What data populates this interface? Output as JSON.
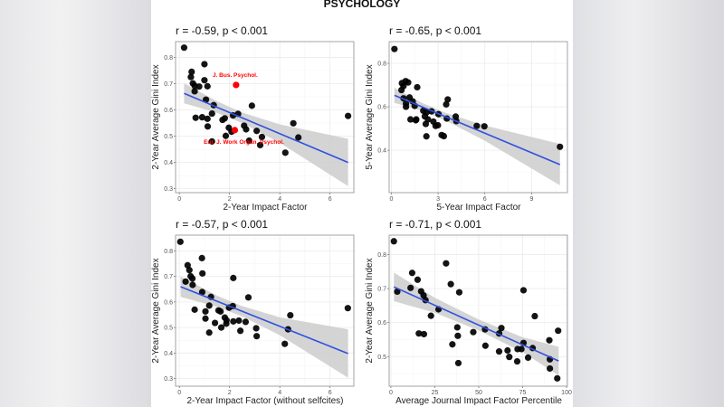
{
  "title": "PSYCHOLOGY",
  "colors": {
    "points": "#000000",
    "highlight": "#ff0000",
    "fit_line": "#3050e0",
    "ci_band": "#cccccc",
    "panel_border": "#9a9a9a",
    "grid": "#ebebeb"
  },
  "chart_data": [
    {
      "type": "scatter",
      "title": "r = -0.59, p < 0.001",
      "xlabel": "2-Year Impact Factor",
      "ylabel": "2-Year Average Gini Index",
      "xlim": [
        -0.15,
        6.95
      ],
      "ylim": [
        0.285,
        0.86
      ],
      "xticks": [
        0,
        2,
        4,
        6
      ],
      "yticks": [
        0.3,
        0.4,
        0.5,
        0.6,
        0.7,
        0.8
      ],
      "grid": true,
      "points": [
        [
          0.19,
          0.837
        ],
        [
          1.0,
          0.774
        ],
        [
          0.49,
          0.745
        ],
        [
          0.46,
          0.725
        ],
        [
          0.54,
          0.701
        ],
        [
          1.0,
          0.713
        ],
        [
          0.61,
          0.692
        ],
        [
          0.79,
          0.689
        ],
        [
          1.12,
          0.69
        ],
        [
          0.61,
          0.671
        ],
        [
          1.06,
          0.639
        ],
        [
          1.37,
          0.618
        ],
        [
          2.89,
          0.616
        ],
        [
          0.65,
          0.57
        ],
        [
          0.91,
          0.572
        ],
        [
          1.3,
          0.586
        ],
        [
          1.12,
          0.566
        ],
        [
          1.13,
          0.537
        ],
        [
          1.72,
          0.562
        ],
        [
          1.81,
          0.568
        ],
        [
          2.14,
          0.579
        ],
        [
          2.34,
          0.585
        ],
        [
          6.72,
          0.577
        ],
        [
          4.54,
          0.549
        ],
        [
          2.58,
          0.54
        ],
        [
          2.66,
          0.526
        ],
        [
          1.97,
          0.532
        ],
        [
          2.08,
          0.517
        ],
        [
          1.85,
          0.501
        ],
        [
          3.08,
          0.52
        ],
        [
          2.78,
          0.483
        ],
        [
          3.29,
          0.497
        ],
        [
          3.22,
          0.466
        ],
        [
          1.3,
          0.48
        ],
        [
          4.22,
          0.437
        ],
        [
          4.74,
          0.495
        ]
      ],
      "highlighted": [
        {
          "x": 2.26,
          "y": 0.695,
          "label": "J. Bus. Psychol."
        },
        {
          "x": 2.21,
          "y": 0.523,
          "label": "Eur. J. Work Organ. Psychol."
        }
      ],
      "fit": {
        "x": [
          0.19,
          6.72
        ],
        "y": [
          0.663,
          0.4
        ]
      },
      "ci_band": {
        "x": [
          0.19,
          1.5,
          2.5,
          4,
          6.72
        ],
        "lower": [
          0.625,
          0.589,
          0.55,
          0.475,
          0.31
        ],
        "upper": [
          0.701,
          0.633,
          0.59,
          0.545,
          0.49
        ]
      }
    },
    {
      "type": "scatter",
      "title": "r = -0.65, p < 0.001",
      "xlabel": "5-Year Impact Factor",
      "ylabel": "5-Year Average Gini Index",
      "xlim": [
        -0.14,
        11.3
      ],
      "ylim": [
        0.205,
        0.9
      ],
      "xticks": [
        0,
        3,
        6,
        9
      ],
      "yticks": [
        0.4,
        0.6,
        0.8
      ],
      "grid": true,
      "points": [
        [
          0.2,
          0.866
        ],
        [
          0.68,
          0.709
        ],
        [
          0.92,
          0.718
        ],
        [
          1.08,
          0.712
        ],
        [
          0.78,
          0.695
        ],
        [
          0.65,
          0.677
        ],
        [
          1.66,
          0.69
        ],
        [
          0.78,
          0.639
        ],
        [
          0.94,
          0.615
        ],
        [
          0.94,
          0.6
        ],
        [
          1.17,
          0.643
        ],
        [
          1.37,
          0.625
        ],
        [
          1.5,
          0.604
        ],
        [
          1.23,
          0.542
        ],
        [
          1.57,
          0.538
        ],
        [
          1.6,
          0.542
        ],
        [
          2.05,
          0.582
        ],
        [
          2.25,
          0.574
        ],
        [
          2.58,
          0.579
        ],
        [
          2.15,
          0.556
        ],
        [
          2.35,
          0.542
        ],
        [
          2.21,
          0.521
        ],
        [
          2.25,
          0.464
        ],
        [
          2.7,
          0.532
        ],
        [
          2.84,
          0.512
        ],
        [
          2.99,
          0.515
        ],
        [
          3.03,
          0.566
        ],
        [
          3.23,
          0.47
        ],
        [
          3.37,
          0.465
        ],
        [
          3.56,
          0.546
        ],
        [
          3.52,
          0.611
        ],
        [
          3.62,
          0.634
        ],
        [
          4.13,
          0.555
        ],
        [
          4.17,
          0.534
        ],
        [
          5.48,
          0.512
        ],
        [
          5.97,
          0.51
        ],
        [
          10.82,
          0.416
        ]
      ],
      "highlighted": [],
      "fit": {
        "x": [
          0.2,
          10.82
        ],
        "y": [
          0.653,
          0.334
        ]
      },
      "ci_band": {
        "x": [
          0.2,
          2,
          3.5,
          6,
          10.82
        ],
        "lower": [
          0.618,
          0.581,
          0.536,
          0.444,
          0.239
        ],
        "upper": [
          0.688,
          0.617,
          0.572,
          0.514,
          0.429
        ]
      }
    },
    {
      "type": "scatter",
      "title": "r = -0.57, p < 0.001",
      "xlabel": "2-Year Impact Factor (without selfcites)",
      "ylabel": "2-Year Average Gini Index",
      "xlim": [
        -0.15,
        6.95
      ],
      "ylim": [
        0.27,
        0.862
      ],
      "xticks": [
        0,
        2,
        4,
        6
      ],
      "yticks": [
        0.3,
        0.4,
        0.5,
        0.6,
        0.7,
        0.8
      ],
      "grid": true,
      "points": [
        [
          0.04,
          0.836
        ],
        [
          0.9,
          0.772
        ],
        [
          0.92,
          0.712
        ],
        [
          0.33,
          0.744
        ],
        [
          0.4,
          0.725
        ],
        [
          0.45,
          0.701
        ],
        [
          0.52,
          0.692
        ],
        [
          0.25,
          0.68
        ],
        [
          0.53,
          0.667
        ],
        [
          0.91,
          0.639
        ],
        [
          1.26,
          0.62
        ],
        [
          2.15,
          0.694
        ],
        [
          2.75,
          0.618
        ],
        [
          0.61,
          0.57
        ],
        [
          1.04,
          0.563
        ],
        [
          1.19,
          0.586
        ],
        [
          1.04,
          0.535
        ],
        [
          1.56,
          0.567
        ],
        [
          1.64,
          0.563
        ],
        [
          1.98,
          0.578
        ],
        [
          2.13,
          0.584
        ],
        [
          6.71,
          0.576
        ],
        [
          4.42,
          0.548
        ],
        [
          1.81,
          0.539
        ],
        [
          1.88,
          0.528
        ],
        [
          1.42,
          0.518
        ],
        [
          1.87,
          0.515
        ],
        [
          1.67,
          0.5
        ],
        [
          1.19,
          0.48
        ],
        [
          2.15,
          0.524
        ],
        [
          2.37,
          0.527
        ],
        [
          2.64,
          0.522
        ],
        [
          2.43,
          0.487
        ],
        [
          3.06,
          0.497
        ],
        [
          3.08,
          0.466
        ],
        [
          4.33,
          0.493
        ],
        [
          4.2,
          0.436
        ]
      ],
      "highlighted": [],
      "fit": {
        "x": [
          0.05,
          6.72
        ],
        "y": [
          0.66,
          0.398
        ]
      },
      "ci_band": {
        "x": [
          0.05,
          1.5,
          2.5,
          4,
          6.72
        ],
        "lower": [
          0.62,
          0.581,
          0.544,
          0.47,
          0.303
        ],
        "upper": [
          0.7,
          0.625,
          0.584,
          0.54,
          0.493
        ]
      }
    },
    {
      "type": "scatter",
      "title": "r = -0.71, p < 0.001",
      "xlabel": "Average Journal Impact Factor Percentile",
      "ylabel": "2-Year Average Gini Index",
      "xlim": [
        -1,
        100.5
      ],
      "ylim": [
        0.413,
        0.857
      ],
      "xticks": [
        0,
        25,
        50,
        75,
        100
      ],
      "yticks": [
        0.5,
        0.6,
        0.7,
        0.8
      ],
      "grid": true,
      "points": [
        [
          1.7,
          0.839
        ],
        [
          3.6,
          0.691
        ],
        [
          11.2,
          0.702
        ],
        [
          12.1,
          0.746
        ],
        [
          15.2,
          0.726
        ],
        [
          17.2,
          0.692
        ],
        [
          18.6,
          0.68
        ],
        [
          19.7,
          0.666
        ],
        [
          22.8,
          0.62
        ],
        [
          27.1,
          0.639
        ],
        [
          15.9,
          0.568
        ],
        [
          18.8,
          0.566
        ],
        [
          31.4,
          0.774
        ],
        [
          34.1,
          0.713
        ],
        [
          38.9,
          0.689
        ],
        [
          35,
          0.536
        ],
        [
          37.8,
          0.586
        ],
        [
          38.1,
          0.561
        ],
        [
          38.4,
          0.481
        ],
        [
          46.9,
          0.572
        ],
        [
          53.6,
          0.58
        ],
        [
          53.8,
          0.532
        ],
        [
          62.9,
          0.584
        ],
        [
          61.6,
          0.568
        ],
        [
          61.6,
          0.515
        ],
        [
          66.4,
          0.518
        ],
        [
          67.4,
          0.499
        ],
        [
          72.1,
          0.522
        ],
        [
          74.3,
          0.522
        ],
        [
          71.9,
          0.486
        ],
        [
          75.5,
          0.54
        ],
        [
          75.5,
          0.695
        ],
        [
          78.1,
          0.497
        ],
        [
          80.7,
          0.525
        ],
        [
          81.9,
          0.619
        ],
        [
          90.2,
          0.548
        ],
        [
          90.5,
          0.492
        ],
        [
          90.5,
          0.465
        ],
        [
          95.2,
          0.576
        ],
        [
          94.7,
          0.436
        ]
      ],
      "highlighted": [],
      "fit": {
        "x": [
          1.7,
          95.5
        ],
        "y": [
          0.705,
          0.487
        ]
      },
      "ci_band": {
        "x": [
          1.7,
          25,
          50,
          75,
          95.5
        ],
        "lower": [
          0.663,
          0.629,
          0.577,
          0.513,
          0.445
        ],
        "upper": [
          0.747,
          0.673,
          0.609,
          0.557,
          0.529
        ]
      }
    }
  ]
}
